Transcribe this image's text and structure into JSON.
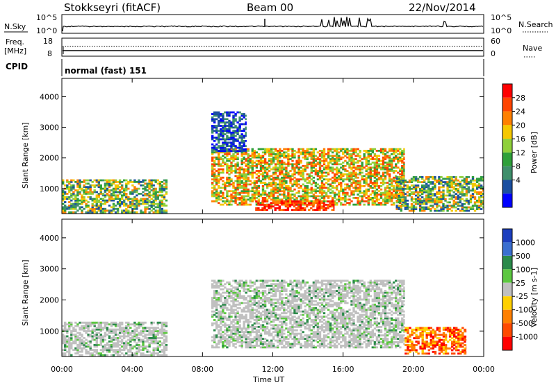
{
  "header": {
    "title": "Stokkseyri (fitACF)",
    "beam": "Beam 00",
    "date": "22/Nov/2014"
  },
  "nsky_panel": {
    "label": "N.Sky",
    "left_ticks": [
      "10^5",
      "10^0"
    ],
    "right_ticks": [
      "10^5",
      "10^0"
    ],
    "right_label": "N.Search"
  },
  "freq_panel": {
    "label_line1": "Freq.",
    "label_line2": "[MHz]",
    "left_ticks": [
      "18",
      "8"
    ],
    "right_ticks": [
      "60",
      "0"
    ],
    "right_label": "Nave"
  },
  "cpid_panel": {
    "label": "CPID",
    "value": "normal (fast) 151"
  },
  "colors": {
    "power": [
      "#0000ff",
      "#1b4fa0",
      "#3e8f6b",
      "#2ea03a",
      "#8fd03a",
      "#f5c800",
      "#ff8000",
      "#ff4400",
      "#ff0000"
    ],
    "velocity": [
      "#1c3fbf",
      "#3a6fd0",
      "#2a8a4a",
      "#5cc840",
      "#c0c0c0",
      "#ffd000",
      "#ff8000",
      "#ff4a00",
      "#ff0000"
    ]
  },
  "chart_data": [
    {
      "type": "heatmap",
      "panel": "power",
      "ylabel": "Slant Range [km]",
      "xlabel": "Time UT",
      "x_ticks": [
        "00:00",
        "04:00",
        "08:00",
        "12:00",
        "16:00",
        "20:00",
        "00:00"
      ],
      "y_ticks": [
        "1000",
        "2000",
        "3000",
        "4000"
      ],
      "xlim_hours": [
        0,
        24
      ],
      "ylim_km": [
        180,
        4600
      ],
      "colorbar": {
        "label": "Power [dB]",
        "ticks": [
          "28",
          "24",
          "20",
          "16",
          "12",
          "8",
          "4"
        ],
        "range": [
          0,
          30
        ]
      },
      "regions": [
        {
          "t0": 0.0,
          "t1": 6.0,
          "r0": 200,
          "r1": 1300,
          "level": "mid"
        },
        {
          "t0": 8.5,
          "t1": 19.5,
          "r0": 450,
          "r1": 2300,
          "level": "high"
        },
        {
          "t0": 11.0,
          "t1": 15.5,
          "r0": 280,
          "r1": 600,
          "level": "max"
        },
        {
          "t0": 19.0,
          "t1": 24.0,
          "r0": 250,
          "r1": 1400,
          "level": "mid"
        },
        {
          "t0": 8.5,
          "t1": 10.5,
          "r0": 2200,
          "r1": 3500,
          "level": "low"
        }
      ]
    },
    {
      "type": "heatmap",
      "panel": "velocity",
      "ylabel": "Slant Range [km]",
      "xlabel": "Time UT",
      "x_ticks": [
        "00:00",
        "04:00",
        "08:00",
        "12:00",
        "16:00",
        "20:00",
        "00:00"
      ],
      "y_ticks": [
        "1000",
        "2000",
        "3000",
        "4000"
      ],
      "xlim_hours": [
        0,
        24
      ],
      "ylim_km": [
        180,
        4600
      ],
      "colorbar": {
        "label": "Velocity [m s-1]",
        "ticks": [
          "1000",
          "500",
          "100",
          "25",
          "-25",
          "-100",
          "-500",
          "-1000"
        ],
        "range": [
          -1000,
          1000
        ]
      },
      "regions": [
        {
          "t0": 0.0,
          "t1": 6.0,
          "r0": 200,
          "r1": 1300,
          "level": "ground"
        },
        {
          "t0": 8.5,
          "t1": 19.5,
          "r0": 450,
          "r1": 2600,
          "level": "ground"
        },
        {
          "t0": 19.5,
          "t1": 23.0,
          "r0": 250,
          "r1": 1100,
          "level": "negative"
        }
      ]
    }
  ]
}
